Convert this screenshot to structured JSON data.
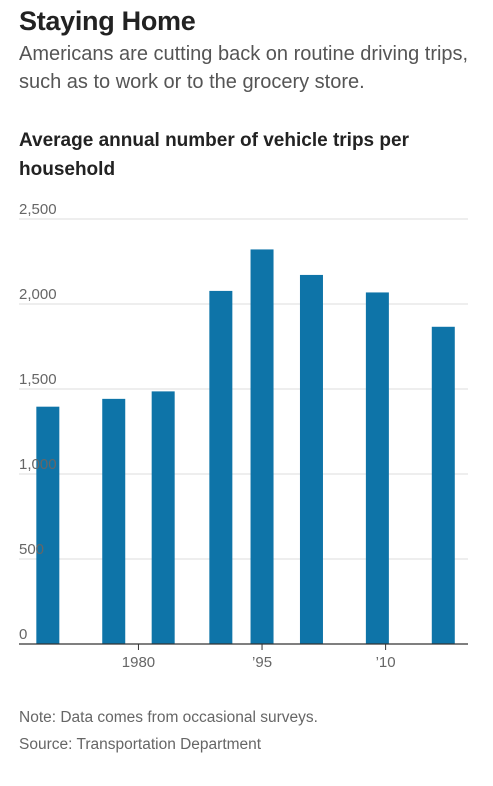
{
  "header": {
    "title": "Staying Home",
    "subtitle": "Americans are cutting back on routine driving trips, such as to work or to the grocery store."
  },
  "chart_data": {
    "type": "bar",
    "title": "Average annual number of vehicle trips per household",
    "categories": [
      "1969",
      "1977",
      "1983",
      "1990",
      "1995",
      "2001",
      "2009",
      "2017"
    ],
    "values": [
      1396,
      1442,
      1486,
      2077,
      2321,
      2171,
      2068,
      1866
    ],
    "xlabel": "",
    "ylabel": "",
    "ylim": [
      0,
      2500
    ],
    "yticks": [
      0,
      500,
      1000,
      1500,
      2000,
      2500
    ],
    "ytick_labels": [
      "0",
      "500",
      "1,000",
      "1,500",
      "2,000",
      "2,500"
    ],
    "xticks": [
      1980,
      1995,
      2010
    ],
    "xtick_labels": [
      "1980",
      "’95",
      "’10"
    ],
    "xlim": [
      1965.5,
      2020
    ],
    "grid": true,
    "bar_color": "#0e74a8"
  },
  "notes": {
    "note": "Note: Data comes from occasional surveys.",
    "source": "Source: Transportation Department"
  }
}
